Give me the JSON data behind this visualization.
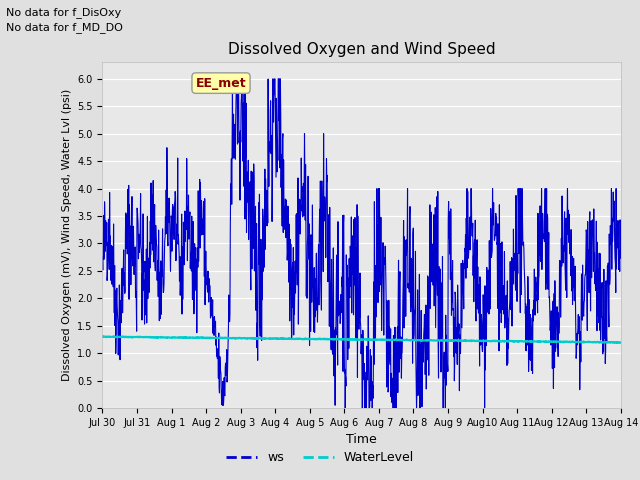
{
  "title": "Dissolved Oxygen and Wind Speed",
  "xlabel": "Time",
  "ylabel": "Dissolved Oxygen (mV), Wind Speed, Water Lvl (psi)",
  "text_no_data_1": "No data for f_DisOxy",
  "text_no_data_2": "No data for f_MD_DO",
  "legend_label_box": "EE_met",
  "legend_ws": "ws",
  "legend_wl": "WaterLevel",
  "ylim": [
    0.0,
    6.3
  ],
  "yticks": [
    0.0,
    0.5,
    1.0,
    1.5,
    2.0,
    2.5,
    3.0,
    3.5,
    4.0,
    4.5,
    5.0,
    5.5,
    6.0
  ],
  "fig_bg_color": "#e0e0e0",
  "ax_bg_color": "#e8e8e8",
  "ws_color": "#0000cc",
  "wl_color": "#00cccc",
  "ws_linewidth": 0.8,
  "wl_linewidth": 1.5,
  "xtick_labels": [
    "Jul 30",
    "Jul 31",
    "Aug 1",
    "Aug 2",
    "Aug 3",
    "Aug 4",
    "Aug 5",
    "Aug 6",
    "Aug 7",
    "Aug 8",
    "Aug 9",
    "Aug10",
    "Aug 11",
    "Aug 12",
    "Aug 13",
    "Aug 14"
  ],
  "title_fontsize": 11,
  "ylabel_fontsize": 8,
  "xlabel_fontsize": 9,
  "tick_fontsize": 7,
  "annot_fontsize": 8,
  "eemet_fontsize": 9
}
